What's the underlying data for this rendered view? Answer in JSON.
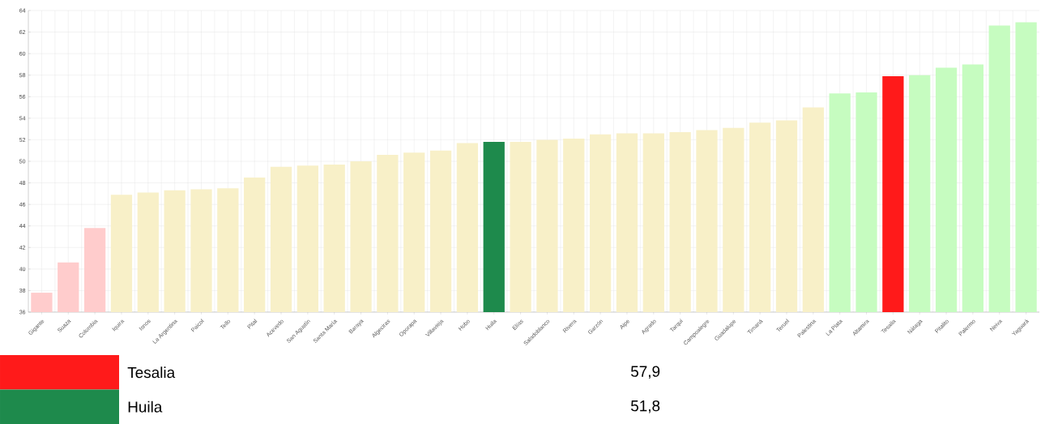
{
  "chart_data": {
    "type": "bar",
    "categories": [
      "Gigante",
      "Suaza",
      "Colombia",
      "Iquira",
      "Isnos",
      "La Argentina",
      "Paicol",
      "Tello",
      "Pital",
      "Acevedo",
      "San Agustín",
      "Santa María",
      "Baraya",
      "Algeciras",
      "Oporapa",
      "Villavieja",
      "Hobo",
      "Huila",
      "Elías",
      "Saladoblanco",
      "Rivera",
      "Garzón",
      "Aipe",
      "Agrado",
      "Tarqui",
      "Campoalegre",
      "Guadalupe",
      "Timaná",
      "Teruel",
      "Palestina",
      "La Plata",
      "Altamira",
      "Tesalia",
      "Nátaga",
      "Pitalito",
      "Palermo",
      "Neiva",
      "Yaguará"
    ],
    "values": [
      37.8,
      40.6,
      43.8,
      46.9,
      47.1,
      47.3,
      47.4,
      47.5,
      48.5,
      49.5,
      49.6,
      49.7,
      50.0,
      50.6,
      50.8,
      51.0,
      51.7,
      51.8,
      51.8,
      52.0,
      52.1,
      52.5,
      52.6,
      52.6,
      52.7,
      52.9,
      53.1,
      53.6,
      53.8,
      55.0,
      56.3,
      56.4,
      57.9,
      58.0,
      58.7,
      59.0,
      62.6,
      62.9
    ],
    "colors": [
      "#ffcccc",
      "#ffcccc",
      "#ffcccc",
      "#f8f0c8",
      "#f8f0c8",
      "#f8f0c8",
      "#f8f0c8",
      "#f8f0c8",
      "#f8f0c8",
      "#f8f0c8",
      "#f8f0c8",
      "#f8f0c8",
      "#f8f0c8",
      "#f8f0c8",
      "#f8f0c8",
      "#f8f0c8",
      "#f8f0c8",
      "#1e8a4c",
      "#f8f0c8",
      "#f8f0c8",
      "#f8f0c8",
      "#f8f0c8",
      "#f8f0c8",
      "#f8f0c8",
      "#f8f0c8",
      "#f8f0c8",
      "#f8f0c8",
      "#f8f0c8",
      "#f8f0c8",
      "#f8f0c8",
      "#c6fcc0",
      "#c6fcc0",
      "#ff1a1a",
      "#c6fcc0",
      "#c6fcc0",
      "#c6fcc0",
      "#c6fcc0",
      "#c6fcc0"
    ],
    "annotations": [
      "Tesalia",
      "57,9",
      "Huila",
      "51,8"
    ],
    "ylim": [
      36,
      64
    ],
    "yticks": [
      36,
      38,
      40,
      42,
      44,
      46,
      48,
      50,
      52,
      54,
      56,
      58,
      60,
      62,
      64
    ],
    "grid": true
  }
}
